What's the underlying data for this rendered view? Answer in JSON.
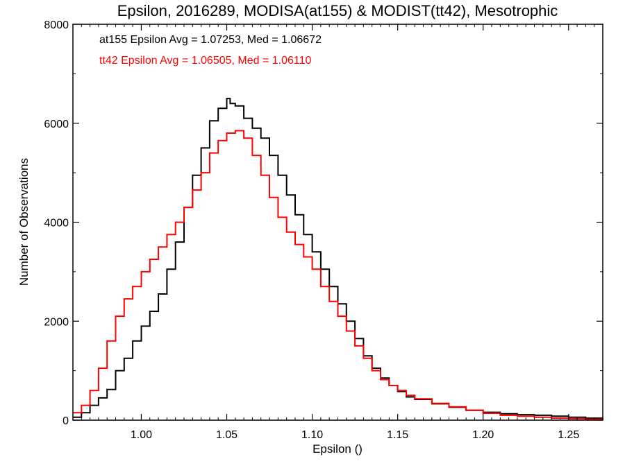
{
  "chart_data": {
    "type": "line",
    "title": "Epsilon, 2016289, MODISA(at155) & MODIST(tt42), Mesotrophic",
    "xlabel": "Epsilon ()",
    "ylabel": "Number of Observations",
    "xlim": [
      0.96,
      1.27
    ],
    "ylim": [
      0,
      8000
    ],
    "x_ticks": [
      1.0,
      1.05,
      1.1,
      1.15,
      1.2,
      1.25
    ],
    "x_tick_labels": [
      "1.00",
      "1.05",
      "1.10",
      "1.15",
      "1.20",
      "1.25"
    ],
    "y_ticks": [
      0,
      2000,
      4000,
      6000,
      8000
    ],
    "y_tick_labels": [
      "0",
      "2000",
      "4000",
      "6000",
      "8000"
    ],
    "grid": false,
    "annotations": [
      {
        "text": "at155 Epsilon Avg = 1.07253, Med = 1.06672",
        "color": "#000000"
      },
      {
        "text": "tt42 Epsilon Avg = 1.06505, Med = 1.06110",
        "color": "#ff0000"
      }
    ],
    "series": [
      {
        "color": "#000000",
        "x": [
          0.96,
          0.965,
          0.97,
          0.975,
          0.98,
          0.985,
          0.99,
          0.995,
          1.0,
          1.005,
          1.01,
          1.015,
          1.02,
          1.025,
          1.03,
          1.035,
          1.04,
          1.045,
          1.05,
          1.052,
          1.055,
          1.06,
          1.065,
          1.07,
          1.075,
          1.08,
          1.085,
          1.09,
          1.095,
          1.1,
          1.105,
          1.11,
          1.115,
          1.12,
          1.125,
          1.13,
          1.135,
          1.14,
          1.145,
          1.15,
          1.155,
          1.16,
          1.17,
          1.18,
          1.19,
          1.2,
          1.21,
          1.22,
          1.23,
          1.24,
          1.25,
          1.26,
          1.27
        ],
        "y": [
          60,
          150,
          300,
          450,
          620,
          1000,
          1250,
          1600,
          1900,
          2200,
          2550,
          3050,
          3600,
          4300,
          4950,
          5500,
          6050,
          6300,
          6500,
          6400,
          6350,
          6100,
          5900,
          5700,
          5350,
          4950,
          4550,
          4150,
          3750,
          3400,
          3050,
          2700,
          2350,
          2000,
          1650,
          1300,
          1050,
          850,
          700,
          580,
          470,
          420,
          330,
          260,
          200,
          160,
          130,
          110,
          100,
          80,
          60,
          40,
          20
        ]
      },
      {
        "color": "#ff0000",
        "x": [
          0.96,
          0.965,
          0.97,
          0.975,
          0.98,
          0.985,
          0.99,
          0.995,
          1.0,
          1.005,
          1.01,
          1.015,
          1.02,
          1.025,
          1.03,
          1.035,
          1.04,
          1.045,
          1.05,
          1.055,
          1.06,
          1.065,
          1.07,
          1.075,
          1.08,
          1.085,
          1.09,
          1.095,
          1.1,
          1.105,
          1.11,
          1.115,
          1.12,
          1.125,
          1.13,
          1.135,
          1.14,
          1.145,
          1.15,
          1.155,
          1.16,
          1.17,
          1.18,
          1.19,
          1.2,
          1.21,
          1.22,
          1.23,
          1.24,
          1.25,
          1.26,
          1.27
        ],
        "y": [
          150,
          300,
          600,
          1050,
          1600,
          2100,
          2450,
          2700,
          3000,
          3250,
          3500,
          3750,
          4000,
          4300,
          4650,
          5000,
          5400,
          5650,
          5800,
          5850,
          5700,
          5350,
          4950,
          4500,
          4100,
          3800,
          3550,
          3300,
          3050,
          2700,
          2400,
          2100,
          1800,
          1500,
          1250,
          1000,
          820,
          700,
          600,
          500,
          430,
          340,
          270,
          200,
          140,
          100,
          80,
          60,
          40,
          30,
          20,
          10
        ]
      }
    ]
  }
}
